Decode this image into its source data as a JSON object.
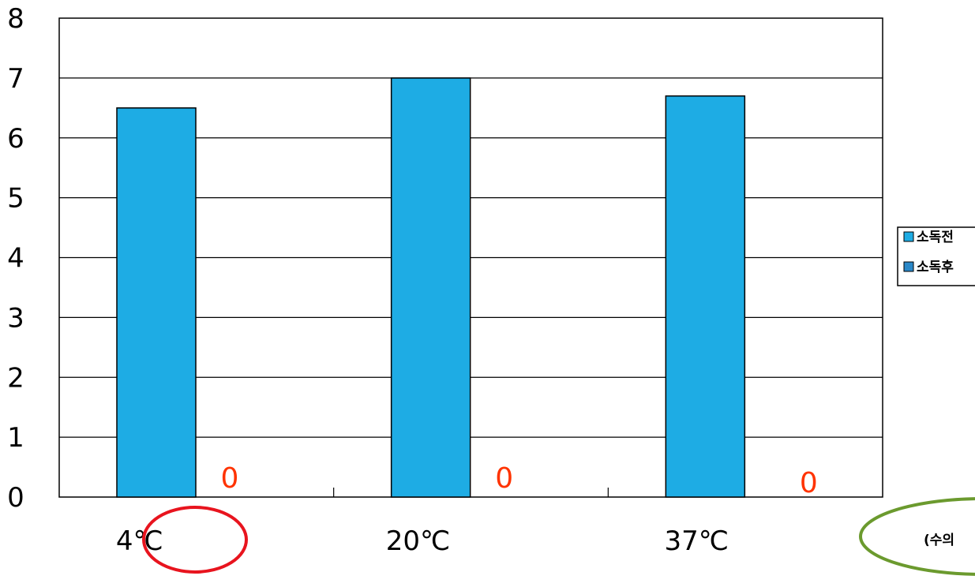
{
  "chart_data": {
    "type": "bar",
    "categories": [
      "4℃",
      "20℃",
      "37℃"
    ],
    "series": [
      {
        "name": "소독전",
        "values": [
          6.5,
          7.0,
          6.7
        ]
      },
      {
        "name": "소독후",
        "values": [
          0,
          0,
          0
        ]
      }
    ],
    "data_labels": [
      "0",
      "0",
      "0"
    ],
    "ylim": [
      0,
      8
    ],
    "yticks": [
      "0",
      "1",
      "2",
      "3",
      "4",
      "5",
      "6",
      "7",
      "8"
    ],
    "grid": true,
    "legend_position": "right",
    "annotation": "(수의"
  },
  "colors": {
    "series_before": "#1EACE4",
    "series_after": "#2A88C8",
    "data_label": "#FF3300",
    "highlight_circle": "#E8141E",
    "note_ellipse": "#6B9A2E"
  }
}
